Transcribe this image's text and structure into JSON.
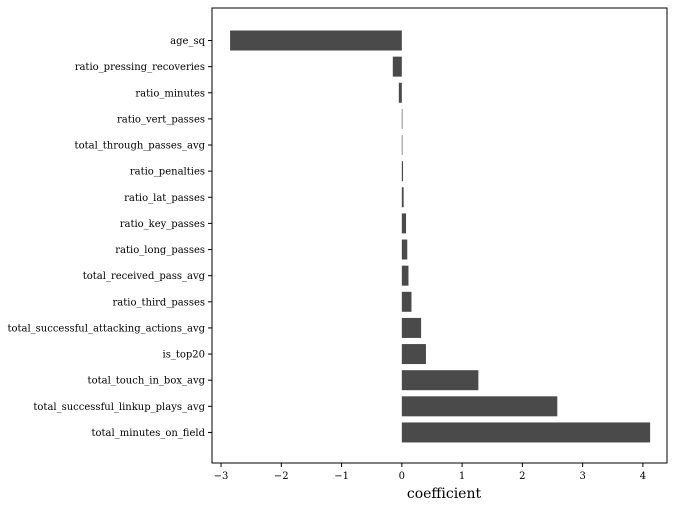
{
  "chart_data": {
    "type": "bar",
    "orientation": "horizontal",
    "title": "",
    "xlabel": "coefficient",
    "ylabel": "",
    "xlim": [
      -3.15,
      4.4
    ],
    "xticks": [
      -3,
      -2,
      -1,
      0,
      1,
      2,
      3,
      4
    ],
    "xtick_labels": [
      "−3",
      "−2",
      "−1",
      "0",
      "1",
      "2",
      "3",
      "4"
    ],
    "grid": false,
    "bar_color": "#4a4a4a",
    "categories": [
      "age_sq",
      "ratio_pressing_recoveries",
      "ratio_minutes",
      "ratio_vert_passes",
      "total_through_passes_avg",
      "ratio_penalties",
      "ratio_lat_passes",
      "ratio_key_passes",
      "ratio_long_passes",
      "total_received_pass_avg",
      "ratio_third_passes",
      "total_successful_attacking_actions_avg",
      "is_top20",
      "total_touch_in_box_avg",
      "total_successful_linkup_plays_avg",
      "total_minutes_on_field"
    ],
    "values": [
      -2.85,
      -0.15,
      -0.05,
      0.0,
      0.01,
      0.02,
      0.03,
      0.07,
      0.09,
      0.11,
      0.16,
      0.32,
      0.4,
      1.27,
      2.58,
      4.12
    ]
  }
}
